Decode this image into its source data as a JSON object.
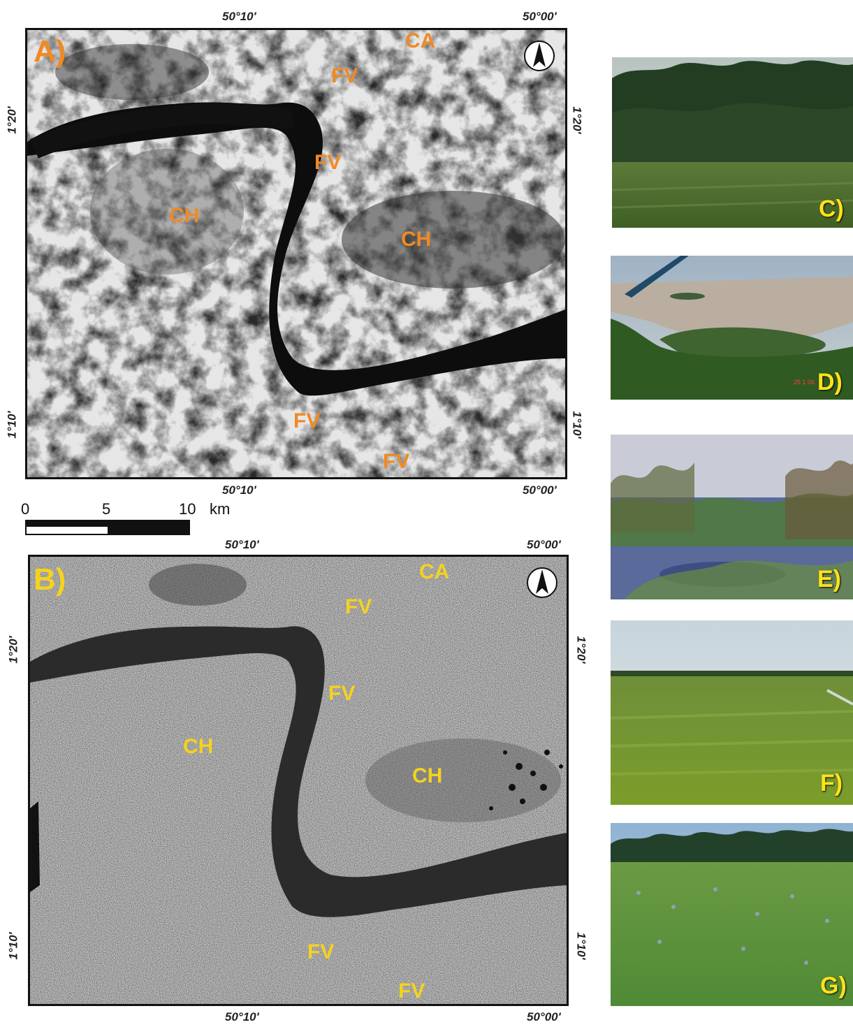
{
  "figure": {
    "panel_a": {
      "label": "A)",
      "label_color": "#f08a24",
      "coords": {
        "top_left": "50°10'",
        "top_right": "50°00'",
        "bottom_left": "50°10'",
        "bottom_right": "50°00'",
        "left_upper": "1°20'",
        "left_lower": "1°10'",
        "right_upper": "1°20'",
        "right_lower": "1°10'"
      },
      "units": [
        {
          "id": "ca",
          "text": "CA"
        },
        {
          "id": "fv1",
          "text": "FV"
        },
        {
          "id": "fv2",
          "text": "FV"
        },
        {
          "id": "ch1",
          "text": "CH"
        },
        {
          "id": "ch2",
          "text": "CH"
        },
        {
          "id": "fv3",
          "text": "FV"
        },
        {
          "id": "fv4",
          "text": "FV"
        }
      ],
      "north_arrow_icon": "north-arrow-icon"
    },
    "panel_b": {
      "label": "B)",
      "label_color": "#f5d21f",
      "coords": {
        "top_left": "50°10'",
        "top_right": "50°00'",
        "bottom_left": "50°10'",
        "bottom_right": "50°00'",
        "left_upper": "1°20'",
        "left_lower": "1°10'",
        "right_upper": "1°20'",
        "right_lower": "1°10'"
      },
      "units": [
        {
          "id": "ca",
          "text": "CA"
        },
        {
          "id": "fv1",
          "text": "FV"
        },
        {
          "id": "fv2",
          "text": "FV"
        },
        {
          "id": "ch1",
          "text": "CH"
        },
        {
          "id": "ch2",
          "text": "CH"
        },
        {
          "id": "fv3",
          "text": "FV"
        },
        {
          "id": "fv4",
          "text": "FV"
        }
      ],
      "north_arrow_icon": "north-arrow-icon"
    },
    "scale_bar": {
      "ticks": [
        "0",
        "5",
        "10"
      ],
      "unit": "km"
    },
    "photos": [
      {
        "id": "c",
        "label": "C)"
      },
      {
        "id": "d",
        "label": "D)",
        "stamp": "25 1 06"
      },
      {
        "id": "e",
        "label": "E)"
      },
      {
        "id": "f",
        "label": "F)"
      },
      {
        "id": "g",
        "label": "G)"
      }
    ]
  }
}
